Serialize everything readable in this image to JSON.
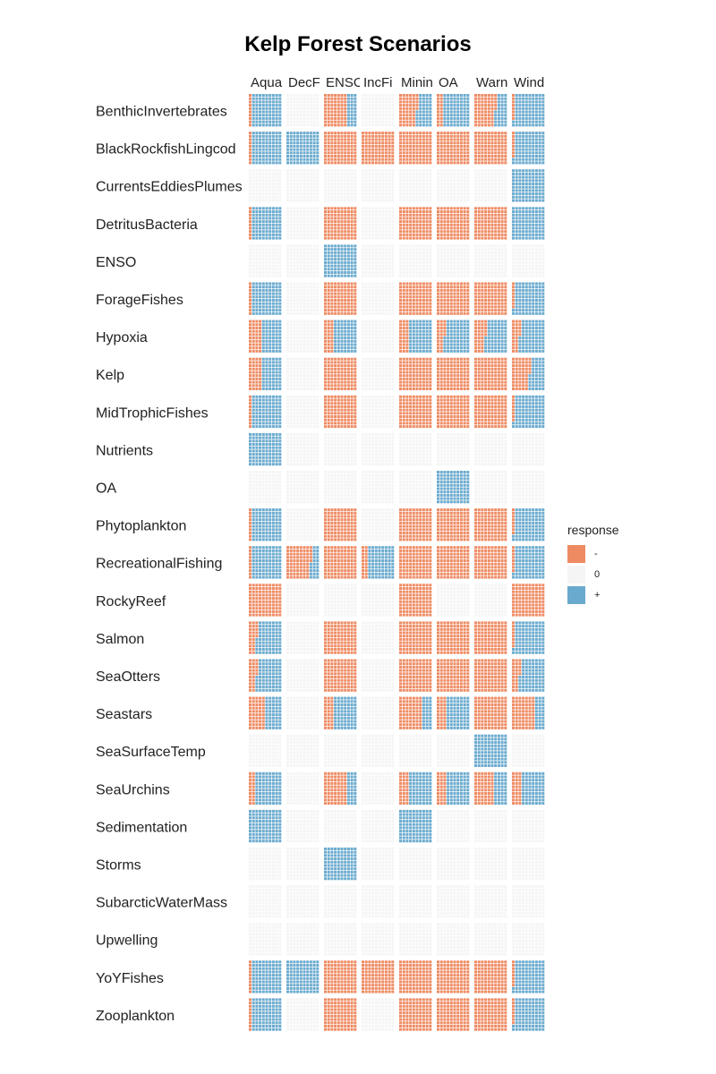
{
  "chart_data": {
    "type": "heatmap",
    "title": "Kelp Forest Scenarios",
    "legend": {
      "title": "response",
      "placement": "right",
      "items": [
        {
          "label": "-",
          "color": "#EE8B63"
        },
        {
          "label": "0",
          "color": "#F5F5F5"
        },
        {
          "label": "+",
          "color": "#6AAACE"
        }
      ]
    },
    "scenarios": [
      "Aqua",
      "DecF",
      "ENSO",
      "IncFi",
      "Minin",
      "OA",
      "Warn",
      "Wind"
    ],
    "variables": [
      "BenthicInvertebrates",
      "BlackRockfishLingcod",
      "CurrentsEddiesPlumes",
      "DetritusBacteria",
      "ENSO",
      "ForageFishes",
      "Hypoxia",
      "Kelp",
      "MidTrophicFishes",
      "Nutrients",
      "OA",
      "Phytoplankton",
      "RecreationalFishing",
      "RockyReef",
      "Salmon",
      "SeaOtters",
      "Seastars",
      "SeaSurfaceTemp",
      "SeaUrchins",
      "Sedimentation",
      "Storms",
      "SubarcticWaterMass",
      "Upwelling",
      "YoYFishes",
      "Zooplankton"
    ],
    "grid_per_cell": 10,
    "note_values": "each cell: [negative, zero, positive] share of 100 simulation outcomes",
    "values": [
      [
        [
          10,
          0,
          90
        ],
        [
          0,
          100,
          0
        ],
        [
          70,
          0,
          30
        ],
        [
          0,
          100,
          0
        ],
        [
          55,
          0,
          45
        ],
        [
          20,
          0,
          80
        ],
        [
          65,
          0,
          35
        ],
        [
          8,
          0,
          92
        ]
      ],
      [
        [
          10,
          0,
          90
        ],
        [
          0,
          0,
          100
        ],
        [
          100,
          0,
          0
        ],
        [
          100,
          0,
          0
        ],
        [
          100,
          0,
          0
        ],
        [
          100,
          0,
          0
        ],
        [
          100,
          0,
          0
        ],
        [
          8,
          0,
          92
        ]
      ],
      [
        [
          0,
          100,
          0
        ],
        [
          0,
          100,
          0
        ],
        [
          0,
          100,
          0
        ],
        [
          0,
          100,
          0
        ],
        [
          0,
          100,
          0
        ],
        [
          0,
          100,
          0
        ],
        [
          0,
          100,
          0
        ],
        [
          0,
          0,
          100
        ]
      ],
      [
        [
          10,
          0,
          90
        ],
        [
          0,
          100,
          0
        ],
        [
          100,
          0,
          0
        ],
        [
          0,
          100,
          0
        ],
        [
          100,
          0,
          0
        ],
        [
          100,
          0,
          0
        ],
        [
          100,
          0,
          0
        ],
        [
          0,
          0,
          100
        ]
      ],
      [
        [
          0,
          100,
          0
        ],
        [
          0,
          100,
          0
        ],
        [
          0,
          0,
          100
        ],
        [
          0,
          100,
          0
        ],
        [
          0,
          100,
          0
        ],
        [
          0,
          100,
          0
        ],
        [
          0,
          100,
          0
        ],
        [
          0,
          100,
          0
        ]
      ],
      [
        [
          10,
          0,
          90
        ],
        [
          0,
          100,
          0
        ],
        [
          100,
          0,
          0
        ],
        [
          0,
          100,
          0
        ],
        [
          100,
          0,
          0
        ],
        [
          100,
          0,
          0
        ],
        [
          100,
          0,
          0
        ],
        [
          8,
          0,
          92
        ]
      ],
      [
        [
          40,
          0,
          60
        ],
        [
          0,
          100,
          0
        ],
        [
          30,
          0,
          70
        ],
        [
          0,
          100,
          0
        ],
        [
          30,
          0,
          70
        ],
        [
          25,
          0,
          75
        ],
        [
          35,
          0,
          65
        ],
        [
          25,
          0,
          75
        ]
      ],
      [
        [
          40,
          0,
          60
        ],
        [
          0,
          100,
          0
        ],
        [
          100,
          0,
          0
        ],
        [
          0,
          100,
          0
        ],
        [
          100,
          0,
          0
        ],
        [
          100,
          0,
          0
        ],
        [
          100,
          0,
          0
        ],
        [
          55,
          0,
          45
        ]
      ],
      [
        [
          10,
          0,
          90
        ],
        [
          0,
          100,
          0
        ],
        [
          100,
          0,
          0
        ],
        [
          0,
          100,
          0
        ],
        [
          100,
          0,
          0
        ],
        [
          100,
          0,
          0
        ],
        [
          100,
          0,
          0
        ],
        [
          8,
          0,
          92
        ]
      ],
      [
        [
          0,
          0,
          100
        ],
        [
          0,
          100,
          0
        ],
        [
          0,
          100,
          0
        ],
        [
          0,
          100,
          0
        ],
        [
          0,
          100,
          0
        ],
        [
          0,
          100,
          0
        ],
        [
          0,
          100,
          0
        ],
        [
          0,
          100,
          0
        ]
      ],
      [
        [
          0,
          100,
          0
        ],
        [
          0,
          100,
          0
        ],
        [
          0,
          100,
          0
        ],
        [
          0,
          100,
          0
        ],
        [
          0,
          100,
          0
        ],
        [
          0,
          0,
          100
        ],
        [
          0,
          100,
          0
        ],
        [
          0,
          100,
          0
        ]
      ],
      [
        [
          10,
          0,
          90
        ],
        [
          0,
          100,
          0
        ],
        [
          100,
          0,
          0
        ],
        [
          0,
          100,
          0
        ],
        [
          100,
          0,
          0
        ],
        [
          100,
          0,
          0
        ],
        [
          100,
          0,
          0
        ],
        [
          8,
          0,
          92
        ]
      ],
      [
        [
          10,
          0,
          90
        ],
        [
          75,
          0,
          25
        ],
        [
          100,
          0,
          0
        ],
        [
          20,
          0,
          80
        ],
        [
          100,
          0,
          0
        ],
        [
          100,
          0,
          0
        ],
        [
          100,
          0,
          0
        ],
        [
          8,
          0,
          92
        ]
      ],
      [
        [
          100,
          0,
          0
        ],
        [
          0,
          100,
          0
        ],
        [
          0,
          100,
          0
        ],
        [
          0,
          100,
          0
        ],
        [
          100,
          0,
          0
        ],
        [
          0,
          100,
          0
        ],
        [
          0,
          100,
          0
        ],
        [
          100,
          0,
          0
        ]
      ],
      [
        [
          25,
          0,
          75
        ],
        [
          0,
          100,
          0
        ],
        [
          100,
          0,
          0
        ],
        [
          0,
          100,
          0
        ],
        [
          100,
          0,
          0
        ],
        [
          100,
          0,
          0
        ],
        [
          100,
          0,
          0
        ],
        [
          8,
          0,
          92
        ]
      ],
      [
        [
          25,
          0,
          75
        ],
        [
          0,
          100,
          0
        ],
        [
          100,
          0,
          0
        ],
        [
          0,
          100,
          0
        ],
        [
          100,
          0,
          0
        ],
        [
          100,
          0,
          0
        ],
        [
          100,
          0,
          0
        ],
        [
          25,
          0,
          75
        ]
      ],
      [
        [
          50,
          0,
          50
        ],
        [
          0,
          100,
          0
        ],
        [
          30,
          0,
          70
        ],
        [
          0,
          100,
          0
        ],
        [
          70,
          0,
          30
        ],
        [
          30,
          0,
          70
        ],
        [
          100,
          0,
          0
        ],
        [
          70,
          0,
          30
        ]
      ],
      [
        [
          0,
          100,
          0
        ],
        [
          0,
          100,
          0
        ],
        [
          0,
          100,
          0
        ],
        [
          0,
          100,
          0
        ],
        [
          0,
          100,
          0
        ],
        [
          0,
          100,
          0
        ],
        [
          0,
          0,
          100
        ],
        [
          0,
          100,
          0
        ]
      ],
      [
        [
          20,
          0,
          80
        ],
        [
          0,
          100,
          0
        ],
        [
          70,
          0,
          30
        ],
        [
          0,
          100,
          0
        ],
        [
          30,
          0,
          70
        ],
        [
          30,
          0,
          70
        ],
        [
          60,
          0,
          40
        ],
        [
          30,
          0,
          70
        ]
      ],
      [
        [
          0,
          0,
          100
        ],
        [
          0,
          100,
          0
        ],
        [
          0,
          100,
          0
        ],
        [
          0,
          100,
          0
        ],
        [
          0,
          0,
          100
        ],
        [
          0,
          100,
          0
        ],
        [
          0,
          100,
          0
        ],
        [
          0,
          100,
          0
        ]
      ],
      [
        [
          0,
          100,
          0
        ],
        [
          0,
          100,
          0
        ],
        [
          0,
          0,
          100
        ],
        [
          0,
          100,
          0
        ],
        [
          0,
          100,
          0
        ],
        [
          0,
          100,
          0
        ],
        [
          0,
          100,
          0
        ],
        [
          0,
          100,
          0
        ]
      ],
      [
        [
          0,
          100,
          0
        ],
        [
          0,
          100,
          0
        ],
        [
          0,
          100,
          0
        ],
        [
          0,
          100,
          0
        ],
        [
          0,
          100,
          0
        ],
        [
          0,
          100,
          0
        ],
        [
          0,
          100,
          0
        ],
        [
          0,
          100,
          0
        ]
      ],
      [
        [
          0,
          100,
          0
        ],
        [
          0,
          100,
          0
        ],
        [
          0,
          100,
          0
        ],
        [
          0,
          100,
          0
        ],
        [
          0,
          100,
          0
        ],
        [
          0,
          100,
          0
        ],
        [
          0,
          100,
          0
        ],
        [
          0,
          100,
          0
        ]
      ],
      [
        [
          10,
          0,
          90
        ],
        [
          0,
          0,
          100
        ],
        [
          100,
          0,
          0
        ],
        [
          100,
          0,
          0
        ],
        [
          100,
          0,
          0
        ],
        [
          100,
          0,
          0
        ],
        [
          100,
          0,
          0
        ],
        [
          8,
          0,
          92
        ]
      ],
      [
        [
          10,
          0,
          90
        ],
        [
          0,
          100,
          0
        ],
        [
          100,
          0,
          0
        ],
        [
          0,
          100,
          0
        ],
        [
          100,
          0,
          0
        ],
        [
          100,
          0,
          0
        ],
        [
          100,
          0,
          0
        ],
        [
          8,
          0,
          92
        ]
      ]
    ]
  }
}
